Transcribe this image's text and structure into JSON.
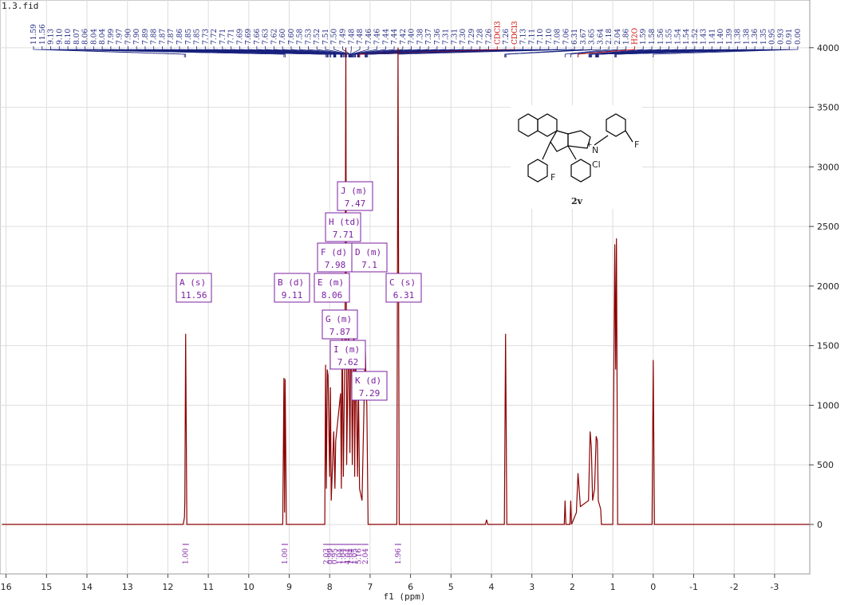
{
  "chart_data": {
    "type": "line",
    "title": "1.3.fid",
    "xlabel": "f1 (ppm)",
    "xlim": [
      16.15,
      -3.85
    ],
    "ylim": [
      -415,
      4400
    ],
    "xticks": [
      16,
      15,
      14,
      13,
      12,
      11,
      10,
      9,
      8,
      7,
      6,
      5,
      4,
      3,
      2,
      1,
      0,
      -1,
      -2,
      -3
    ],
    "yticks": [
      0,
      500,
      1000,
      1500,
      2000,
      2500,
      3000,
      3500,
      4000
    ],
    "grid": true,
    "color": "#8b0000",
    "x": [
      16.1,
      11.62,
      11.59,
      11.58,
      11.56,
      11.53,
      9.16,
      9.13,
      9.115,
      9.1,
      9.07,
      8.12,
      8.1,
      8.08,
      8.06,
      8.04,
      8.0,
      7.98,
      7.96,
      7.9,
      7.87,
      7.85,
      7.73,
      7.71,
      7.69,
      7.66,
      7.62,
      7.6,
      7.58,
      7.53,
      7.5,
      7.48,
      7.46,
      7.44,
      7.4,
      7.38,
      7.36,
      7.31,
      7.29,
      7.26,
      7.2,
      7.12,
      7.1,
      7.08,
      7.05,
      6.34,
      6.31,
      6.28,
      4.15,
      4.12,
      4.09,
      3.68,
      3.65,
      3.62,
      2.2,
      2.18,
      2.16,
      2.06,
      2.04,
      2.02,
      1.9,
      1.86,
      1.8,
      1.6,
      1.56,
      1.53,
      1.5,
      1.45,
      1.41,
      1.38,
      1.36,
      1.3,
      1.28,
      1.0,
      0.95,
      0.93,
      0.91,
      0.88,
      0.03,
      0.0,
      -0.03,
      -3.85
    ],
    "values": [
      0,
      0,
      60,
      200,
      1600,
      0,
      0,
      1230,
      100,
      1220,
      0,
      0,
      1340,
      300,
      1300,
      1250,
      400,
      1150,
      200,
      780,
      300,
      700,
      1100,
      300,
      1650,
      400,
      1650,
      4000,
      500,
      1700,
      600,
      1500,
      1400,
      500,
      1720,
      400,
      1500,
      400,
      1200,
      300,
      200,
      1500,
      1200,
      1000,
      0,
      0,
      4000,
      0,
      0,
      40,
      0,
      0,
      1600,
      0,
      0,
      200,
      0,
      0,
      200,
      0,
      100,
      430,
      150,
      200,
      780,
      650,
      200,
      300,
      740,
      700,
      200,
      130,
      0,
      0,
      2350,
      1300,
      2400,
      0,
      0,
      1380,
      0,
      0
    ],
    "peak_labels": [
      "11.59",
      "11.56",
      "9.13",
      "9.10",
      "8.10",
      "8.07",
      "8.06",
      "8.04",
      "8.04",
      "7.99",
      "7.97",
      "7.90",
      "7.90",
      "7.89",
      "7.88",
      "7.87",
      "7.87",
      "7.86",
      "7.85",
      "7.85",
      "7.73",
      "7.72",
      "7.71",
      "7.71",
      "7.69",
      "7.69",
      "7.66",
      "7.63",
      "7.62",
      "7.60",
      "7.60",
      "7.58",
      "7.53",
      "7.52",
      "7.51",
      "7.50",
      "7.49",
      "7.48",
      "7.48",
      "7.46",
      "7.46",
      "7.44",
      "7.44",
      "7.42",
      "7.40",
      "7.38",
      "7.37",
      "7.36",
      "7.31",
      "7.31",
      "7.30",
      "7.29",
      "7.28",
      "7.26",
      "CDCl3",
      "7.26",
      "CDCl3",
      "7.13",
      "7.11",
      "7.10",
      "7.10",
      "7.08",
      "7.06",
      "6.31",
      "3.67",
      "3.65",
      "3.64",
      "2.18",
      "2.04",
      "1.86",
      "H2O",
      "1.59",
      "1.58",
      "1.56",
      "1.55",
      "1.54",
      "1.54",
      "1.52",
      "1.43",
      "1.41",
      "1.40",
      "1.39",
      "1.38",
      "1.38",
      "1.36",
      "1.35",
      "0.95",
      "0.93",
      "0.91",
      "0.00"
    ],
    "multiplets": [
      {
        "label": "A (s)",
        "shift": 11.56
      },
      {
        "label": "B (d)",
        "shift": 9.11
      },
      {
        "label": "E (m)",
        "shift": 8.06
      },
      {
        "label": "C (s)",
        "shift": 6.31
      },
      {
        "label": "F (d)",
        "shift": 7.98
      },
      {
        "label": "D (m)",
        "shift": 7.1
      },
      {
        "label": "H (td)",
        "shift": 7.71
      },
      {
        "label": "J (m)",
        "shift": 7.47
      },
      {
        "label": "G (m)",
        "shift": 7.87
      },
      {
        "label": "I (m)",
        "shift": 7.62
      },
      {
        "label": "K (d)",
        "shift": 7.29
      }
    ],
    "integrals": [
      "1.00",
      "1.00",
      "2.03",
      "0.99",
      "0.95",
      "1.04",
      "1.04",
      "4.04",
      "1.04",
      "1.05",
      "5.16",
      "2.04",
      "1.96"
    ]
  },
  "structure": {
    "labels": [
      "F",
      "N",
      "+",
      "Cl",
      "F"
    ],
    "compound": "2v"
  }
}
